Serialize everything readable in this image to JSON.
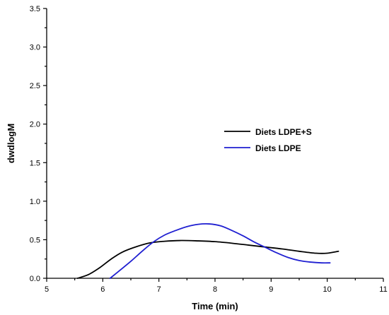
{
  "chart_data": {
    "type": "line",
    "title": "",
    "xlabel": "Time (min)",
    "ylabel": "dwdlogM",
    "xlim": [
      5,
      11
    ],
    "ylim": [
      0,
      3.5
    ],
    "xticks": [
      5,
      6,
      7,
      8,
      9,
      10,
      11
    ],
    "yticks": [
      "0.0",
      "0.5",
      "1.0",
      "1.5",
      "2.0",
      "2.5",
      "3.0",
      "3.5"
    ],
    "grid": false,
    "legend_position": "center-right",
    "series": [
      {
        "name": "Diets LDPE+S",
        "color": "#000000",
        "x": [
          5.55,
          5.75,
          5.95,
          6.15,
          6.35,
          6.6,
          6.85,
          7.1,
          7.4,
          7.7,
          8.0,
          8.3,
          8.6,
          8.9,
          9.2,
          9.5,
          9.8,
          10.0,
          10.2
        ],
        "y": [
          0.0,
          0.05,
          0.14,
          0.25,
          0.34,
          0.41,
          0.46,
          0.48,
          0.49,
          0.485,
          0.475,
          0.455,
          0.43,
          0.405,
          0.38,
          0.35,
          0.325,
          0.325,
          0.35
        ]
      },
      {
        "name": "Diets LDPE",
        "color": "#1f1fd1",
        "x": [
          6.13,
          6.3,
          6.5,
          6.7,
          6.9,
          7.1,
          7.3,
          7.5,
          7.7,
          7.9,
          8.1,
          8.3,
          8.5,
          8.7,
          8.9,
          9.1,
          9.3,
          9.5,
          9.7,
          9.9,
          10.05
        ],
        "y": [
          0.0,
          0.1,
          0.22,
          0.35,
          0.47,
          0.56,
          0.62,
          0.67,
          0.7,
          0.705,
          0.68,
          0.62,
          0.55,
          0.47,
          0.4,
          0.33,
          0.27,
          0.23,
          0.21,
          0.2,
          0.2
        ]
      }
    ]
  }
}
